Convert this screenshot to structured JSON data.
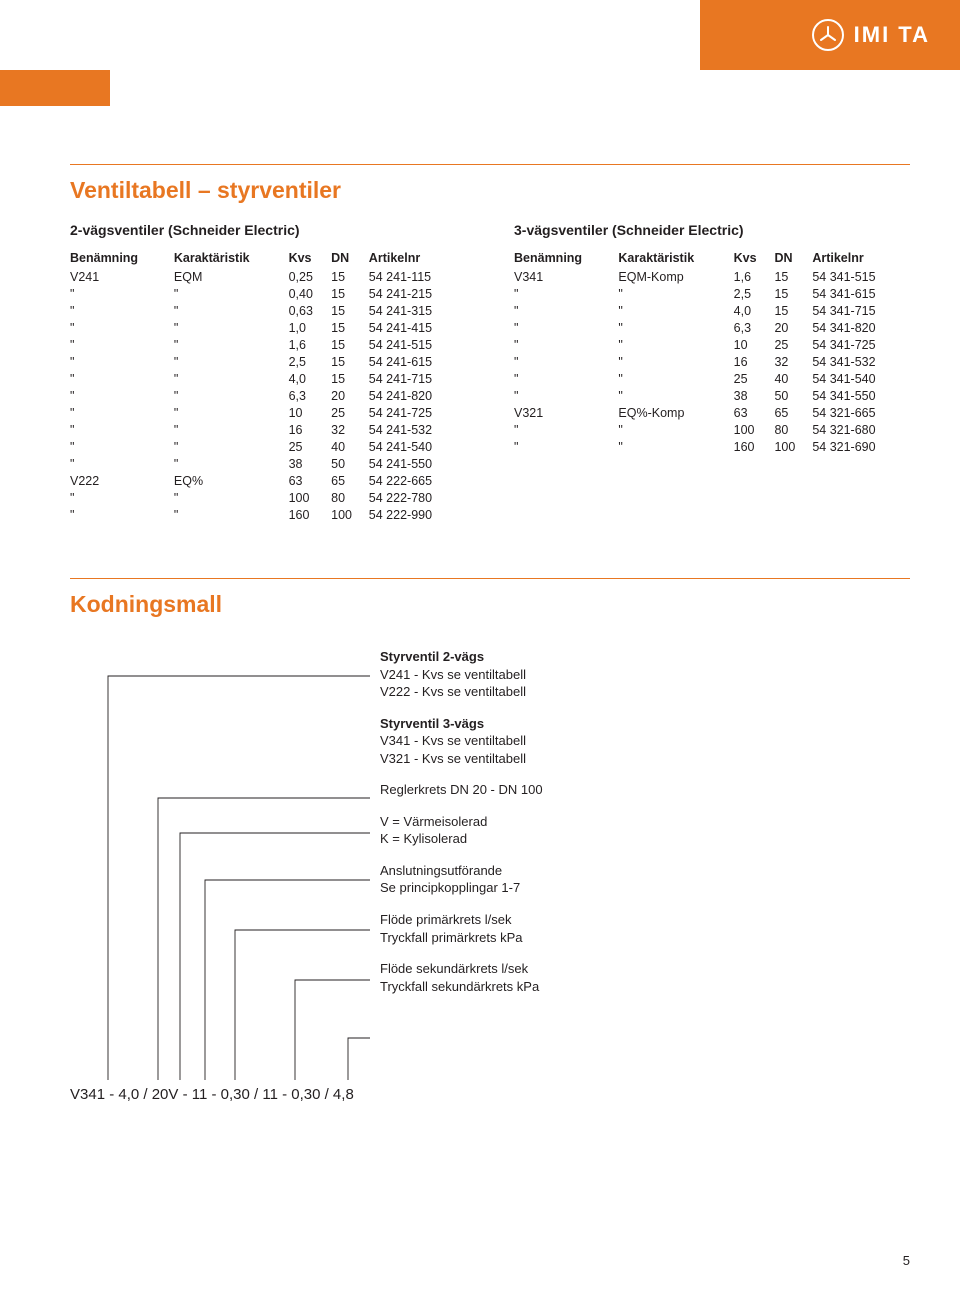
{
  "brand": "IMI TA",
  "page_number": "5",
  "section1": {
    "title": "Ventiltabell – styrventiler",
    "left": {
      "subtitle": "2-vägsventiler (Schneider Electric)",
      "columns": [
        "Benämning",
        "Karaktäristik",
        "Kvs",
        "DN",
        "Artikelnr"
      ],
      "rows": [
        [
          "V241",
          "EQM",
          "0,25",
          "15",
          "54 241-115"
        ],
        [
          "\"",
          "\"",
          "0,40",
          "15",
          "54 241-215"
        ],
        [
          "\"",
          "\"",
          "0,63",
          "15",
          "54 241-315"
        ],
        [
          "\"",
          "\"",
          "1,0",
          "15",
          "54 241-415"
        ],
        [
          "\"",
          "\"",
          "1,6",
          "15",
          "54 241-515"
        ],
        [
          "\"",
          "\"",
          "2,5",
          "15",
          "54 241-615"
        ],
        [
          "\"",
          "\"",
          "4,0",
          "15",
          "54 241-715"
        ],
        [
          "\"",
          "\"",
          "6,3",
          "20",
          "54 241-820"
        ],
        [
          "\"",
          "\"",
          "10",
          "25",
          "54 241-725"
        ],
        [
          "\"",
          "\"",
          "16",
          "32",
          "54 241-532"
        ],
        [
          "\"",
          "\"",
          "25",
          "40",
          "54 241-540"
        ],
        [
          "\"",
          "\"",
          "38",
          "50",
          "54 241-550"
        ],
        [
          "V222",
          "EQ%",
          "63",
          "65",
          "54 222-665"
        ],
        [
          "\"",
          "\"",
          "100",
          "80",
          "54 222-780"
        ],
        [
          "\"",
          "\"",
          "160",
          "100",
          "54 222-990"
        ]
      ]
    },
    "right": {
      "subtitle": "3-vägsventiler (Schneider Electric)",
      "columns": [
        "Benämning",
        "Karaktäristik",
        "Kvs",
        "DN",
        "Artikelnr"
      ],
      "rows": [
        [
          "V341",
          "EQM-Komp",
          "1,6",
          "15",
          "54 341-515"
        ],
        [
          "\"",
          "\"",
          "2,5",
          "15",
          "54 341-615"
        ],
        [
          "\"",
          "\"",
          "4,0",
          "15",
          "54 341-715"
        ],
        [
          "\"",
          "\"",
          "6,3",
          "20",
          "54 341-820"
        ],
        [
          "\"",
          "\"",
          "10",
          "25",
          "54 341-725"
        ],
        [
          "\"",
          "\"",
          "16",
          "32",
          "54 341-532"
        ],
        [
          "\"",
          "\"",
          "25",
          "40",
          "54 341-540"
        ],
        [
          "\"",
          "\"",
          "38",
          "50",
          "54 341-550"
        ],
        [
          "V321",
          "EQ%-Komp",
          "63",
          "65",
          "54 321-665"
        ],
        [
          "\"",
          "\"",
          "100",
          "80",
          "54 321-680"
        ],
        [
          "\"",
          "\"",
          "160",
          "100",
          "54 321-690"
        ]
      ]
    }
  },
  "section2": {
    "title": "Kodningsmall",
    "code": "V341 - 4,0 / 20V - 11 - 0,30 / 11 - 0,30 / 4,8",
    "groups": [
      {
        "heading": "Styrventil 2-vägs",
        "lines": [
          "V241 - Kvs se ventiltabell",
          "V222 - Kvs se ventiltabell"
        ]
      },
      {
        "heading": "Styrventil 3-vägs",
        "lines": [
          "V341 - Kvs se ventiltabell",
          "V321 - Kvs se ventiltabell"
        ]
      },
      {
        "heading": "",
        "lines": [
          "Reglerkrets DN 20 - DN 100"
        ]
      },
      {
        "heading": "",
        "lines": [
          "V = Värmeisolerad",
          "K = Kylisolerad"
        ]
      },
      {
        "heading": "",
        "lines": [
          "Anslutningsutförande",
          "Se principkopplingar 1-7"
        ]
      },
      {
        "heading": "",
        "lines": [
          "Flöde primärkrets l/sek",
          "Tryckfall primärkrets kPa"
        ]
      },
      {
        "heading": "",
        "lines": [
          "Flöde sekundärkrets l/sek",
          "Tryckfall sekundärkrets kPa"
        ]
      }
    ]
  },
  "colors": {
    "accent": "#e87722",
    "text": "#231f20"
  }
}
